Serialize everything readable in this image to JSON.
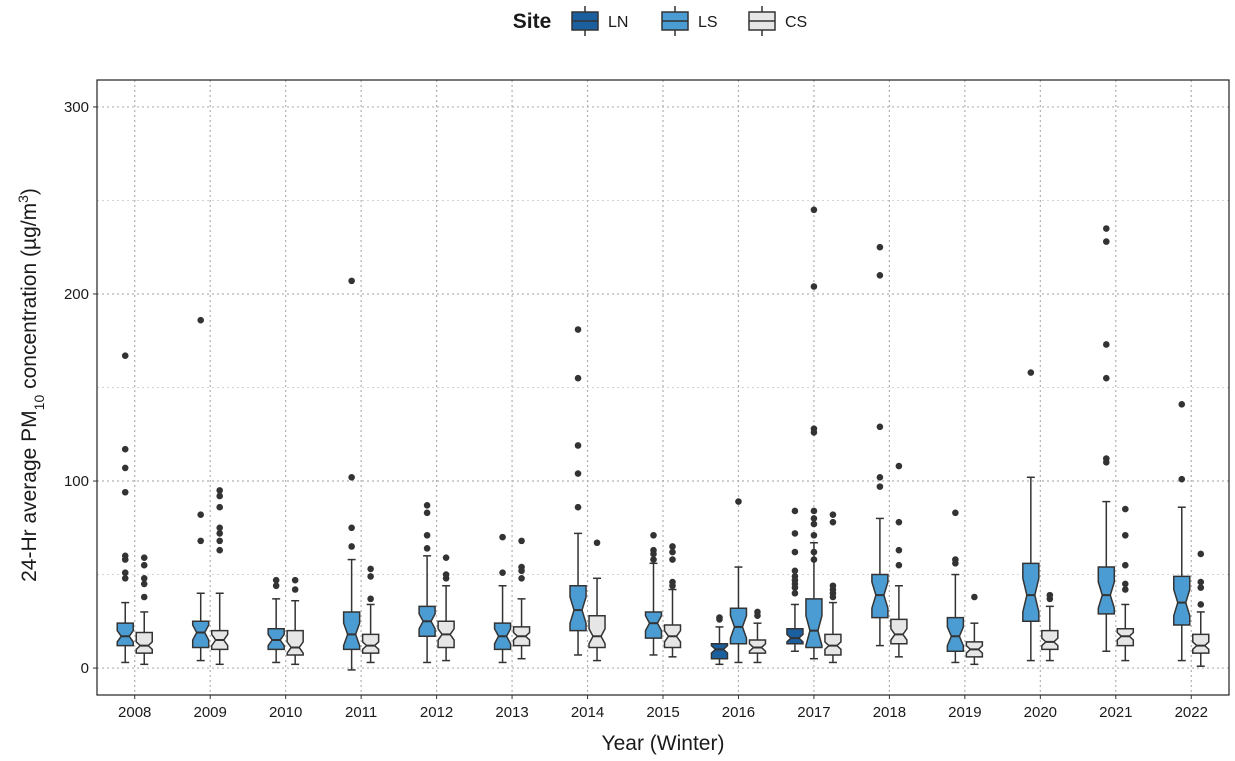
{
  "chart_data": {
    "type": "boxplot",
    "legend_title": "Site",
    "legend": "top",
    "x_label": "Year (Winter)",
    "y_label": [
      "24-Hr average PM",
      "10",
      " concentration (µg/m",
      "3",
      ")"
    ],
    "categories": [
      "2008",
      "2009",
      "2010",
      "2011",
      "2012",
      "2013",
      "2014",
      "2015",
      "2016",
      "2017",
      "2018",
      "2019",
      "2020",
      "2021",
      "2022"
    ],
    "ylim": [
      -14.4,
      314.4
    ],
    "yticks": [
      0,
      100,
      200,
      300
    ],
    "minor_yticks": [
      50,
      150,
      250
    ],
    "grid": true,
    "series": [
      {
        "name": "LN",
        "color": "#1c5f9f",
        "values": [
          null,
          null,
          null,
          null,
          null,
          null,
          null,
          null,
          {
            "min": 2,
            "q1": 5,
            "median": 10,
            "q3": 13,
            "max": 22,
            "notch": [
              8,
              12
            ],
            "outliers": [
              27,
              26
            ]
          },
          {
            "min": 9,
            "q1": 13,
            "median": 16,
            "q3": 21,
            "max": 34,
            "notch": [
              14,
              18
            ],
            "outliers": [
              84,
              72,
              62,
              52,
              49,
              47,
              45,
              43,
              40
            ]
          },
          null,
          null,
          null,
          null,
          null
        ]
      },
      {
        "name": "LS",
        "color": "#4b9cd3",
        "values": [
          {
            "min": 3,
            "q1": 12,
            "median": 17,
            "q3": 24,
            "max": 35,
            "notch": [
              14,
              20
            ],
            "outliers": [
              167,
              117,
              107,
              94,
              60,
              58,
              51,
              48
            ]
          },
          {
            "min": 4,
            "q1": 11,
            "median": 19,
            "q3": 25,
            "max": 40,
            "notch": [
              15,
              23
            ],
            "outliers": [
              186,
              82,
              68
            ]
          },
          {
            "min": 3,
            "q1": 10,
            "median": 15,
            "q3": 21,
            "max": 37,
            "notch": [
              12,
              18
            ],
            "outliers": [
              47,
              44
            ]
          },
          {
            "min": -1,
            "q1": 10,
            "median": 18,
            "q3": 30,
            "max": 58,
            "notch": [
              12,
              24
            ],
            "outliers": [
              207,
              102,
              75,
              65
            ]
          },
          {
            "min": 3,
            "q1": 17,
            "median": 25,
            "q3": 33,
            "max": 60,
            "notch": [
              21,
              29
            ],
            "outliers": [
              87,
              83,
              71,
              64
            ]
          },
          {
            "min": 3,
            "q1": 10,
            "median": 17,
            "q3": 24,
            "max": 44,
            "notch": [
              13,
              21
            ],
            "outliers": [
              70,
              51
            ]
          },
          {
            "min": 7,
            "q1": 20,
            "median": 31,
            "q3": 44,
            "max": 72,
            "notch": [
              24,
              38
            ],
            "outliers": [
              181,
              155,
              119,
              104,
              86
            ]
          },
          {
            "min": 7,
            "q1": 16,
            "median": 24,
            "q3": 30,
            "max": 56,
            "notch": [
              20,
              28
            ],
            "outliers": [
              71,
              63,
              61,
              58
            ]
          },
          {
            "min": 3,
            "q1": 13,
            "median": 22,
            "q3": 32,
            "max": 54,
            "notch": [
              16,
              28
            ],
            "outliers": [
              89
            ]
          },
          {
            "min": 5,
            "q1": 11,
            "median": 20,
            "q3": 37,
            "max": 67,
            "notch": [
              12,
              28
            ],
            "outliers": [
              245,
              204,
              128,
              126,
              84,
              80,
              77,
              71,
              62,
              58
            ]
          },
          {
            "min": 12,
            "q1": 27,
            "median": 39,
            "q3": 50,
            "max": 80,
            "notch": [
              32,
              46
            ],
            "outliers": [
              225,
              210,
              129,
              102,
              97
            ]
          },
          {
            "min": 3,
            "q1": 9,
            "median": 17,
            "q3": 27,
            "max": 50,
            "notch": [
              12,
              22
            ],
            "outliers": [
              83,
              58,
              56
            ]
          },
          {
            "min": 4,
            "q1": 25,
            "median": 39,
            "q3": 56,
            "max": 102,
            "notch": [
              30,
              48
            ],
            "outliers": [
              158
            ]
          },
          {
            "min": 9,
            "q1": 29,
            "median": 39,
            "q3": 54,
            "max": 89,
            "notch": [
              32,
              46
            ],
            "outliers": [
              235,
              228,
              173,
              155,
              112,
              110
            ]
          },
          {
            "min": 4,
            "q1": 23,
            "median": 35,
            "q3": 49,
            "max": 86,
            "notch": [
              28,
              42
            ],
            "outliers": [
              141,
              101
            ]
          }
        ]
      },
      {
        "name": "CS",
        "color": "#e6e6e6",
        "values": [
          {
            "min": 2,
            "q1": 8,
            "median": 12,
            "q3": 19,
            "max": 30,
            "notch": [
              10,
              14
            ],
            "outliers": [
              59,
              55,
              48,
              45,
              38
            ]
          },
          {
            "min": 2,
            "q1": 10,
            "median": 15,
            "q3": 20,
            "max": 40,
            "notch": [
              12,
              18
            ],
            "outliers": [
              95,
              92,
              86,
              75,
              72,
              68,
              63
            ]
          },
          {
            "min": 2,
            "q1": 7,
            "median": 11,
            "q3": 20,
            "max": 36,
            "notch": [
              8,
              14
            ],
            "outliers": [
              47,
              42
            ]
          },
          {
            "min": 3,
            "q1": 8,
            "median": 12,
            "q3": 18,
            "max": 34,
            "notch": [
              10,
              14
            ],
            "outliers": [
              53,
              49,
              37
            ]
          },
          {
            "min": 4,
            "q1": 11,
            "median": 18,
            "q3": 25,
            "max": 44,
            "notch": [
              15,
              21
            ],
            "outliers": [
              59,
              50,
              48
            ]
          },
          {
            "min": 5,
            "q1": 12,
            "median": 17,
            "q3": 22,
            "max": 37,
            "notch": [
              15,
              19
            ],
            "outliers": [
              68,
              54,
              52,
              48
            ]
          },
          {
            "min": 4,
            "q1": 11,
            "median": 17,
            "q3": 28,
            "max": 48,
            "notch": [
              13,
              21
            ],
            "outliers": [
              67
            ]
          },
          {
            "min": 6,
            "q1": 11,
            "median": 17,
            "q3": 23,
            "max": 42,
            "notch": [
              14,
              20
            ],
            "outliers": [
              65,
              62,
              58,
              46,
              44
            ]
          },
          {
            "min": 3,
            "q1": 8,
            "median": 11,
            "q3": 15,
            "max": 24,
            "notch": [
              9,
              13
            ],
            "outliers": [
              30,
              28
            ]
          },
          {
            "min": 3,
            "q1": 7,
            "median": 12,
            "q3": 18,
            "max": 35,
            "notch": [
              10,
              14
            ],
            "outliers": [
              82,
              78,
              44,
              42,
              40,
              38
            ]
          },
          {
            "min": 6,
            "q1": 13,
            "median": 18,
            "q3": 26,
            "max": 44,
            "notch": [
              15,
              21
            ],
            "outliers": [
              108,
              78,
              63,
              55
            ]
          },
          {
            "min": 2,
            "q1": 6,
            "median": 10,
            "q3": 14,
            "max": 24,
            "notch": [
              8,
              12
            ],
            "outliers": [
              38
            ]
          },
          {
            "min": 4,
            "q1": 10,
            "median": 14,
            "q3": 20,
            "max": 33,
            "notch": [
              12,
              16
            ],
            "outliers": [
              39,
              37
            ]
          },
          {
            "min": 4,
            "q1": 12,
            "median": 17,
            "q3": 21,
            "max": 34,
            "notch": [
              15,
              19
            ],
            "outliers": [
              85,
              71,
              55,
              45,
              42
            ]
          },
          {
            "min": 1,
            "q1": 8,
            "median": 12,
            "q3": 18,
            "max": 30,
            "notch": [
              10,
              14
            ],
            "outliers": [
              61,
              46,
              43,
              34
            ]
          }
        ]
      }
    ]
  }
}
